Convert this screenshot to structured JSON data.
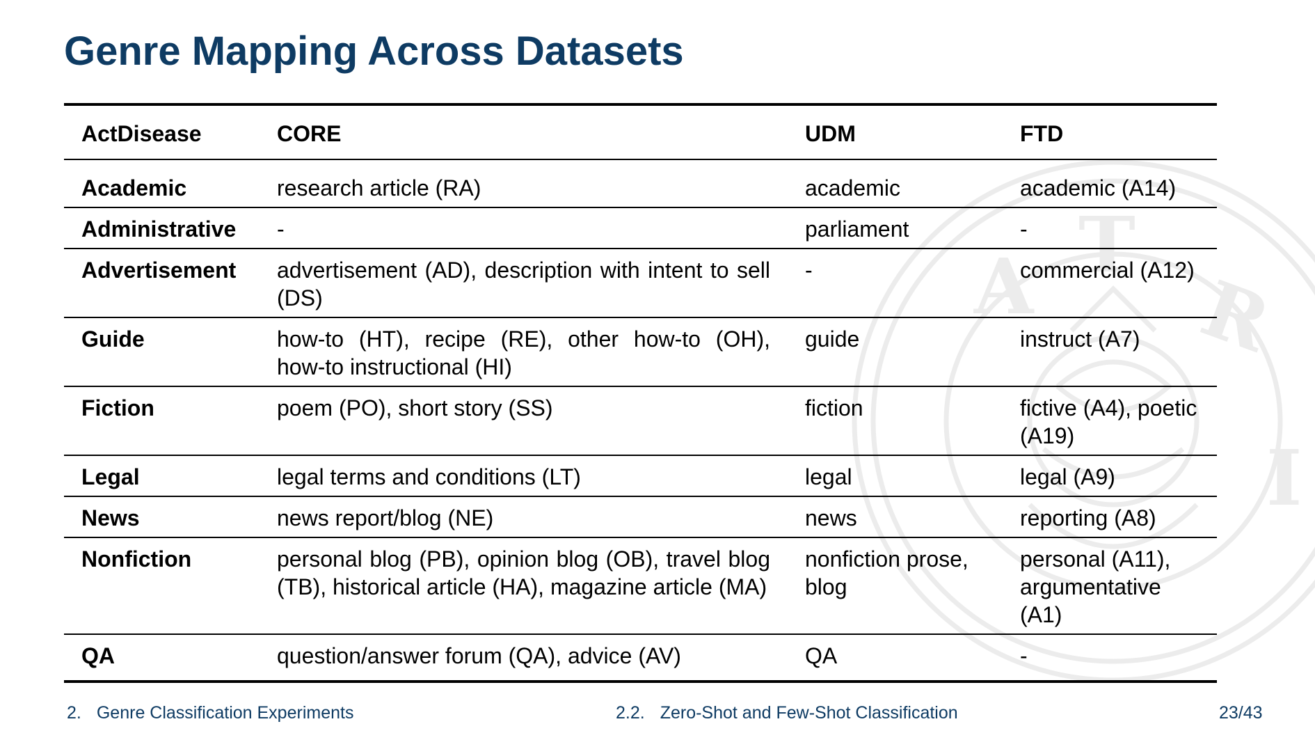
{
  "title": "Genre Mapping Across Datasets",
  "columns": [
    "ActDisease",
    "CORE",
    "UDM",
    "FTD"
  ],
  "rows": [
    {
      "label": "Academic",
      "core": "research article (RA)",
      "udm": "academic",
      "ftd": "academic (A14)"
    },
    {
      "label": "Administrative",
      "core": "-",
      "udm": "parliament",
      "ftd": "-"
    },
    {
      "label": "Advertisement",
      "core": "advertisement (AD), description with intent to sell (DS)",
      "udm": "-",
      "ftd": "commercial (A12)"
    },
    {
      "label": "Guide",
      "core": "how-to (HT), recipe (RE), other how-to (OH), how-to instructional (HI)",
      "udm": "guide",
      "ftd": "instruct (A7)"
    },
    {
      "label": "Fiction",
      "core": "poem (PO), short story (SS)",
      "udm": "fiction",
      "ftd": "fictive (A4), poetic (A19)"
    },
    {
      "label": "Legal",
      "core": "legal terms and conditions (LT)",
      "udm": "legal",
      "ftd": "legal (A9)"
    },
    {
      "label": "News",
      "core": "news report/blog (NE)",
      "udm": "news",
      "ftd": "reporting (A8)"
    },
    {
      "label": "Nonfiction",
      "core": "personal blog (PB), opinion blog (OB), travel blog (TB), historical article (HA), magazine arti­cle (MA)",
      "udm": "nonfiction prose, blog",
      "ftd": "personal (A11), argumentative (A1)"
    },
    {
      "label": "QA",
      "core": "question/answer forum (QA), advice (AV)",
      "udm": "QA",
      "ftd": "-"
    }
  ],
  "footer": {
    "section_number": "2.",
    "section_title": "Genre Classification Experiments",
    "subsection_number": "2.2.",
    "subsection_title": "Zero-Shot and Few-Shot Classification",
    "page": "23/43"
  },
  "colors": {
    "title": "#0e3b63",
    "footer": "#0e3b63",
    "watermark": "#eeeeee"
  }
}
